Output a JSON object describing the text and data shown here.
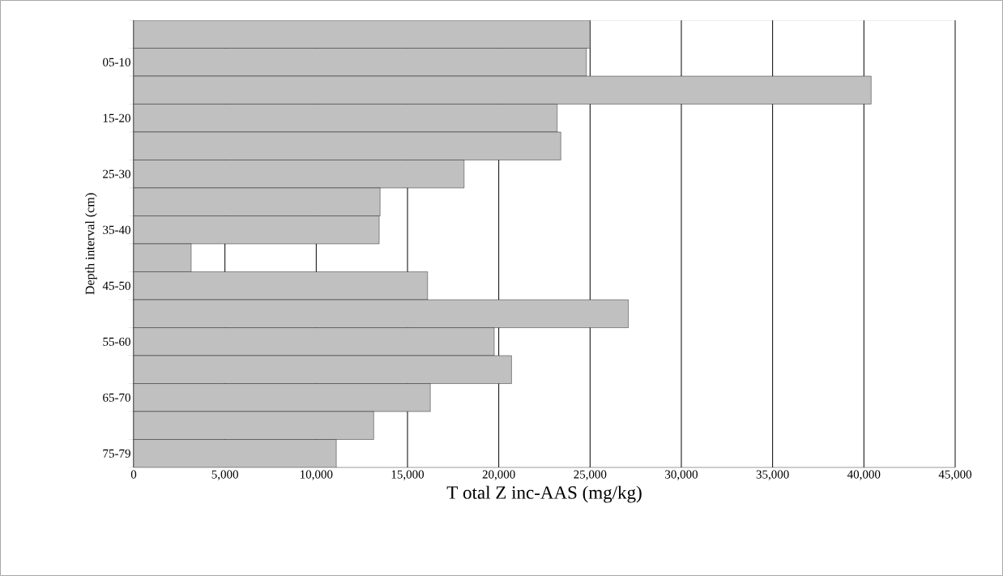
{
  "chart_data": {
    "type": "bar",
    "orientation": "horizontal",
    "xlabel": "T otal Z inc-AAS (mg/kg)",
    "ylabel": "Depth interval (cm)",
    "categories": [
      null,
      "05-10",
      null,
      "15-20",
      null,
      "25-30",
      null,
      "35-40",
      null,
      "45-50",
      null,
      "55-60",
      null,
      "65-70",
      null,
      "75-79"
    ],
    "values": [
      25000,
      24800,
      40400,
      23200,
      23400,
      18100,
      13500,
      13450,
      3150,
      16100,
      27100,
      19750,
      20700,
      16250,
      13150,
      11100
    ],
    "color": "#c0c0c0",
    "xlim": [
      0,
      45000
    ],
    "xticks": [
      0,
      {
        "value": 5000,
        "label": "5,000"
      },
      {
        "value": 10000,
        "label": "10,000"
      },
      {
        "value": 15000,
        "label": "15,000"
      },
      {
        "value": 20000,
        "label": "20,000"
      },
      {
        "value": 25000,
        "label": "25,000"
      },
      {
        "value": 30000,
        "label": "30,000"
      },
      {
        "value": 35000,
        "label": "35,000"
      },
      {
        "value": 40000,
        "label": "40,000"
      },
      {
        "value": 45000,
        "label": "45,000"
      }
    ],
    "grid": "x"
  }
}
